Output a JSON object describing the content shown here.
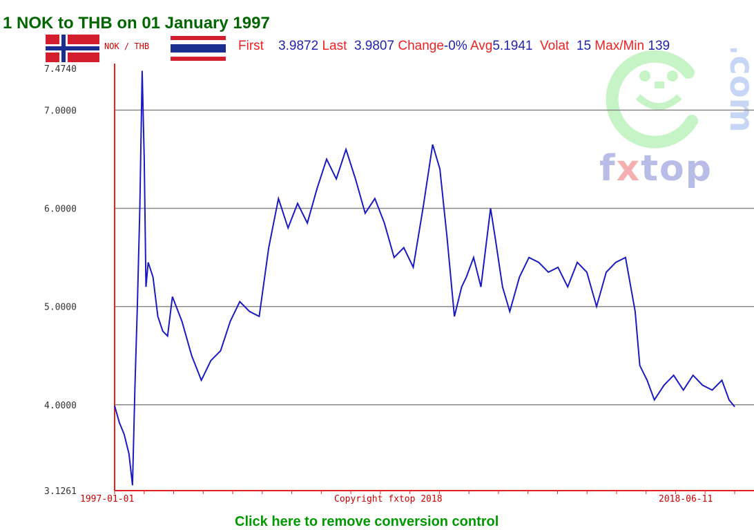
{
  "page": {
    "title": "1 NOK to THB on 01 January 1997",
    "footer": "Click here to remove conversion control"
  },
  "header": {
    "pair_from": "NOK",
    "pair_sep": "/",
    "pair_to": "THB",
    "first_label": "First",
    "first_value": "3.9872",
    "last_label": "Last",
    "last_value": "3.9807",
    "change_label": "Change",
    "change_value": "-0%",
    "avg_label": "Avg",
    "avg_value": "5.1941",
    "volat_label": "Volat",
    "volat_value": "15",
    "maxmin_label": "Max/Min",
    "maxmin_value": "139"
  },
  "watermark": {
    "brand_pre": "f",
    "brand_x": "x",
    "brand_post": "top",
    "domain": ".com"
  },
  "chart_data": {
    "type": "line",
    "title": "",
    "xlabel": "",
    "ylabel": "",
    "ylim": [
      3.1261,
      7.474
    ],
    "y_ticks": [
      "3.1261",
      "4.0000",
      "5.0000",
      "6.0000",
      "7.0000",
      "7.4740"
    ],
    "gridlines": [
      4.0,
      5.0,
      6.0,
      7.0
    ],
    "x_tick_labels": [
      "1997-01-01",
      "2018-06-11"
    ],
    "x_range": [
      "1997-01-01",
      "2018-06-11"
    ],
    "center_label": "Copyright fxtop 2018",
    "colors": {
      "line": "#1a1abf",
      "axis": "#e62020",
      "grid": "#888888"
    },
    "series": [
      {
        "x": [
          "1997-01-01",
          "1997-03-01",
          "1997-05-01",
          "1997-07-01",
          "1997-08-15",
          "1997-09-15",
          "1997-10-15",
          "1997-11-15",
          "1997-12-15",
          "1998-01-10",
          "1998-02-01",
          "1998-03-01",
          "1998-05-01",
          "1998-07-01",
          "1998-09-01",
          "1998-11-01",
          "1999-01-01",
          "1999-05-01",
          "1999-09-01",
          "2000-01-01",
          "2000-05-01",
          "2000-09-01",
          "2000-11-01",
          "2001-01-01",
          "2001-05-01",
          "2001-09-01",
          "2002-01-01",
          "2002-05-01",
          "2002-09-01",
          "2003-01-01",
          "2003-05-01",
          "2003-09-01",
          "2004-01-01",
          "2004-05-01",
          "2004-09-01",
          "2005-01-01",
          "2005-05-01",
          "2005-09-01",
          "2006-01-01",
          "2006-05-01",
          "2006-09-01",
          "2007-01-01",
          "2007-05-01",
          "2007-09-01",
          "2008-01-01",
          "2008-04-01",
          "2008-07-01",
          "2008-10-01",
          "2009-01-01",
          "2009-03-01",
          "2009-06-01",
          "2009-09-01",
          "2010-01-01",
          "2010-03-01",
          "2010-06-01",
          "2010-09-01",
          "2011-01-01",
          "2011-05-01",
          "2011-09-01",
          "2012-01-01",
          "2012-05-01",
          "2012-09-01",
          "2013-01-01",
          "2013-05-01",
          "2013-09-01",
          "2014-01-01",
          "2014-05-01",
          "2014-09-01",
          "2015-01-01",
          "2015-03-01",
          "2015-06-01",
          "2015-09-01",
          "2016-01-01",
          "2016-05-01",
          "2016-09-01",
          "2017-01-01",
          "2017-05-01",
          "2017-09-01",
          "2018-01-01",
          "2018-04-01",
          "2018-06-11"
        ],
        "y": [
          3.99,
          3.82,
          3.7,
          3.5,
          3.18,
          4.2,
          5.0,
          6.0,
          7.4,
          6.5,
          5.2,
          5.45,
          5.3,
          4.9,
          4.75,
          4.7,
          5.1,
          4.85,
          4.5,
          4.25,
          4.45,
          4.55,
          4.7,
          4.85,
          5.05,
          4.95,
          4.9,
          5.6,
          6.1,
          5.8,
          6.05,
          5.85,
          6.2,
          6.5,
          6.3,
          6.6,
          6.3,
          5.95,
          6.1,
          5.85,
          5.5,
          5.6,
          5.4,
          6.0,
          6.65,
          6.4,
          5.7,
          4.9,
          5.2,
          5.3,
          5.5,
          5.2,
          6.0,
          5.7,
          5.2,
          4.95,
          5.3,
          5.5,
          5.45,
          5.35,
          5.4,
          5.2,
          5.45,
          5.35,
          5.0,
          5.35,
          5.45,
          5.5,
          4.95,
          4.4,
          4.25,
          4.05,
          4.2,
          4.3,
          4.15,
          4.3,
          4.2,
          4.15,
          4.25,
          4.05,
          3.98
        ]
      }
    ]
  }
}
